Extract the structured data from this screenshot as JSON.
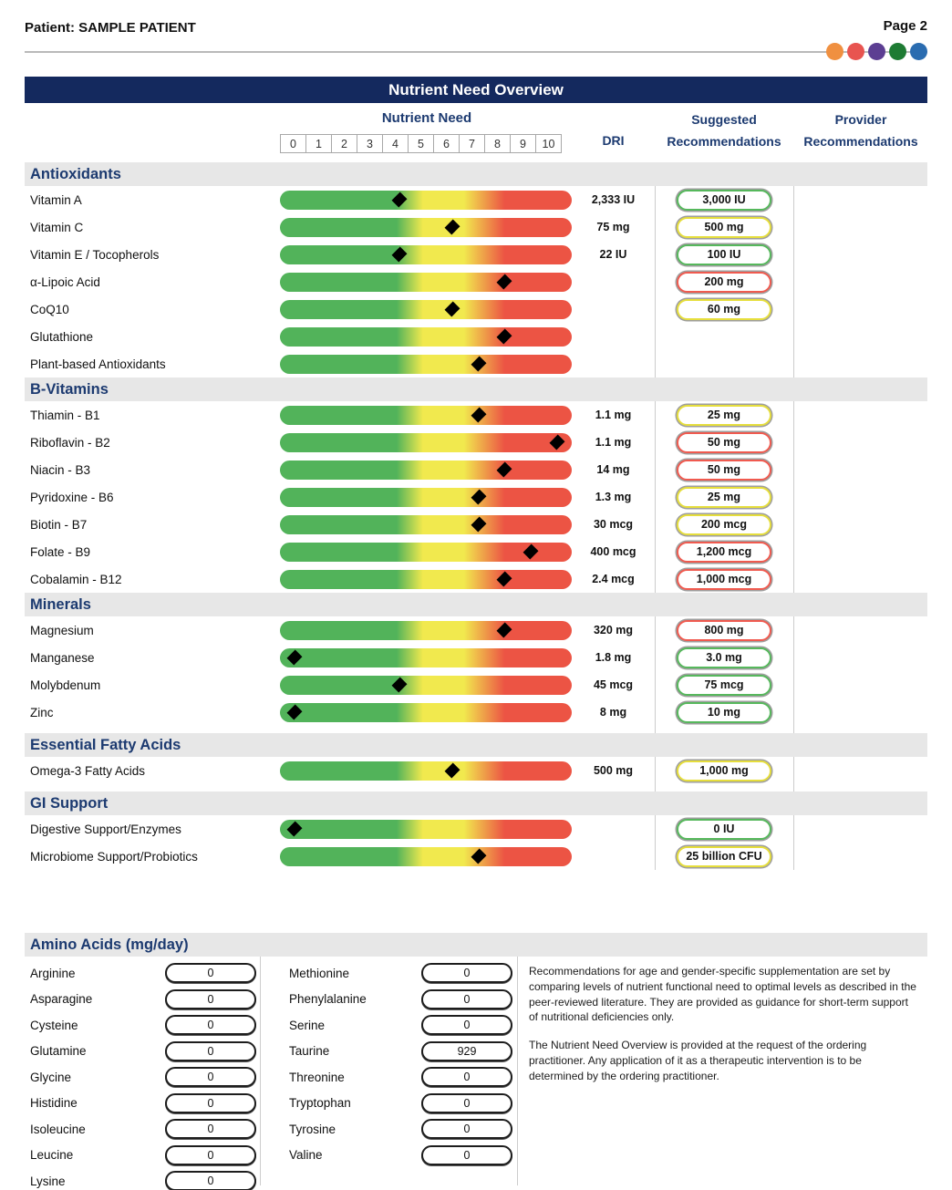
{
  "header": {
    "patient_label": "Patient: SAMPLE PATIENT",
    "page_label": "Page 2",
    "dot_colors": [
      "#F09040",
      "#E85450",
      "#5C3E92",
      "#1E7B33",
      "#2A6CB0"
    ]
  },
  "title_bar": "Nutrient Need Overview",
  "columns": {
    "nutrient_need": "Nutrient Need",
    "scale": [
      "0",
      "1",
      "2",
      "3",
      "4",
      "5",
      "6",
      "7",
      "8",
      "9",
      "10"
    ],
    "dri": "DRI",
    "suggested_line1": "Suggested",
    "suggested_line2": "Recommendations",
    "provider_line1": "Provider",
    "provider_line2": "Recommendations"
  },
  "colors": {
    "green": "#56B85C",
    "yellow": "#E6DE3C",
    "red": "#F05A4F"
  },
  "table": {
    "need_scale_min": 0,
    "need_scale_max": 10,
    "sections": [
      {
        "title": "Antioxidants",
        "rows": [
          {
            "label": "Vitamin A",
            "need": 4,
            "dri": "2,333 IU",
            "rec": "3,000 IU",
            "rec_color": "green"
          },
          {
            "label": "Vitamin C",
            "need": 6,
            "dri": "75 mg",
            "rec": "500 mg",
            "rec_color": "yellow"
          },
          {
            "label": "Vitamin E / Tocopherols",
            "need": 4,
            "dri": "22 IU",
            "rec": "100 IU",
            "rec_color": "green"
          },
          {
            "label": "α-Lipoic Acid",
            "need": 8,
            "dri": "",
            "rec": "200 mg",
            "rec_color": "red"
          },
          {
            "label": "CoQ10",
            "need": 6,
            "dri": "",
            "rec": "60 mg",
            "rec_color": "yellow"
          },
          {
            "label": "Glutathione",
            "need": 8,
            "dri": "",
            "rec": null,
            "rec_color": null
          },
          {
            "label": "Plant-based Antioxidants",
            "need": 7,
            "dri": "",
            "rec": null,
            "rec_color": null
          }
        ]
      },
      {
        "title": "B-Vitamins",
        "rows": [
          {
            "label": "Thiamin - B1",
            "need": 7,
            "dri": "1.1 mg",
            "rec": "25 mg",
            "rec_color": "yellow"
          },
          {
            "label": "Riboflavin - B2",
            "need": 10,
            "dri": "1.1 mg",
            "rec": "50 mg",
            "rec_color": "red"
          },
          {
            "label": "Niacin - B3",
            "need": 8,
            "dri": "14 mg",
            "rec": "50 mg",
            "rec_color": "red"
          },
          {
            "label": "Pyridoxine - B6",
            "need": 7,
            "dri": "1.3 mg",
            "rec": "25 mg",
            "rec_color": "yellow"
          },
          {
            "label": "Biotin - B7",
            "need": 7,
            "dri": "30 mcg",
            "rec": "200 mcg",
            "rec_color": "yellow"
          },
          {
            "label": "Folate - B9",
            "need": 9,
            "dri": "400 mcg",
            "rec": "1,200 mcg",
            "rec_color": "red"
          },
          {
            "label": "Cobalamin - B12",
            "need": 8,
            "dri": "2.4 mcg",
            "rec": "1,000 mcg",
            "rec_color": "red"
          }
        ]
      },
      {
        "title": "Minerals",
        "rows": [
          {
            "label": "Magnesium",
            "need": 8,
            "dri": "320 mg",
            "rec": "800 mg",
            "rec_color": "red"
          },
          {
            "label": "Manganese",
            "need": 0,
            "dri": "1.8 mg",
            "rec": "3.0 mg",
            "rec_color": "green"
          },
          {
            "label": "Molybdenum",
            "need": 4,
            "dri": "45 mcg",
            "rec": "75 mcg",
            "rec_color": "green"
          },
          {
            "label": "Zinc",
            "need": 0,
            "dri": "8 mg",
            "rec": "10 mg",
            "rec_color": "green"
          }
        ]
      },
      {
        "title": "Essential Fatty Acids",
        "rows": [
          {
            "label": "Omega-3 Fatty Acids",
            "need": 6,
            "dri": "500 mg",
            "rec": "1,000 mg",
            "rec_color": "yellow"
          }
        ]
      },
      {
        "title": "GI Support",
        "rows": [
          {
            "label": "Digestive Support/Enzymes",
            "need": 0,
            "dri": "",
            "rec": "0 IU",
            "rec_color": "green"
          },
          {
            "label": "Microbiome Support/Probiotics",
            "need": 7,
            "dri": "",
            "rec": "25 billion CFU",
            "rec_color": "yellow"
          }
        ]
      }
    ]
  },
  "amino": {
    "title": "Amino Acids (mg/day)",
    "col1": [
      {
        "label": "Arginine",
        "value": "0"
      },
      {
        "label": "Asparagine",
        "value": "0"
      },
      {
        "label": "Cysteine",
        "value": "0"
      },
      {
        "label": "Glutamine",
        "value": "0"
      },
      {
        "label": "Glycine",
        "value": "0"
      },
      {
        "label": "Histidine",
        "value": "0"
      },
      {
        "label": "Isoleucine",
        "value": "0"
      },
      {
        "label": "Leucine",
        "value": "0"
      },
      {
        "label": "Lysine",
        "value": "0"
      }
    ],
    "col2": [
      {
        "label": "Methionine",
        "value": "0"
      },
      {
        "label": "Phenylalanine",
        "value": "0"
      },
      {
        "label": "Serine",
        "value": "0"
      },
      {
        "label": "Taurine",
        "value": "929"
      },
      {
        "label": "Threonine",
        "value": "0"
      },
      {
        "label": "Tryptophan",
        "value": "0"
      },
      {
        "label": "Tyrosine",
        "value": "0"
      },
      {
        "label": "Valine",
        "value": "0"
      }
    ],
    "notes": [
      "Recommendations for age and gender-specific supplementation are set by comparing levels of nutrient functional need to optimal levels as described in the peer-reviewed literature. They are provided as guidance for short-term support of nutritional deficiencies only.",
      "The Nutrient Need Overview is provided at the request of the ordering practitioner. Any application of it as a therapeutic intervention is to be determined by the ordering practitioner."
    ]
  }
}
